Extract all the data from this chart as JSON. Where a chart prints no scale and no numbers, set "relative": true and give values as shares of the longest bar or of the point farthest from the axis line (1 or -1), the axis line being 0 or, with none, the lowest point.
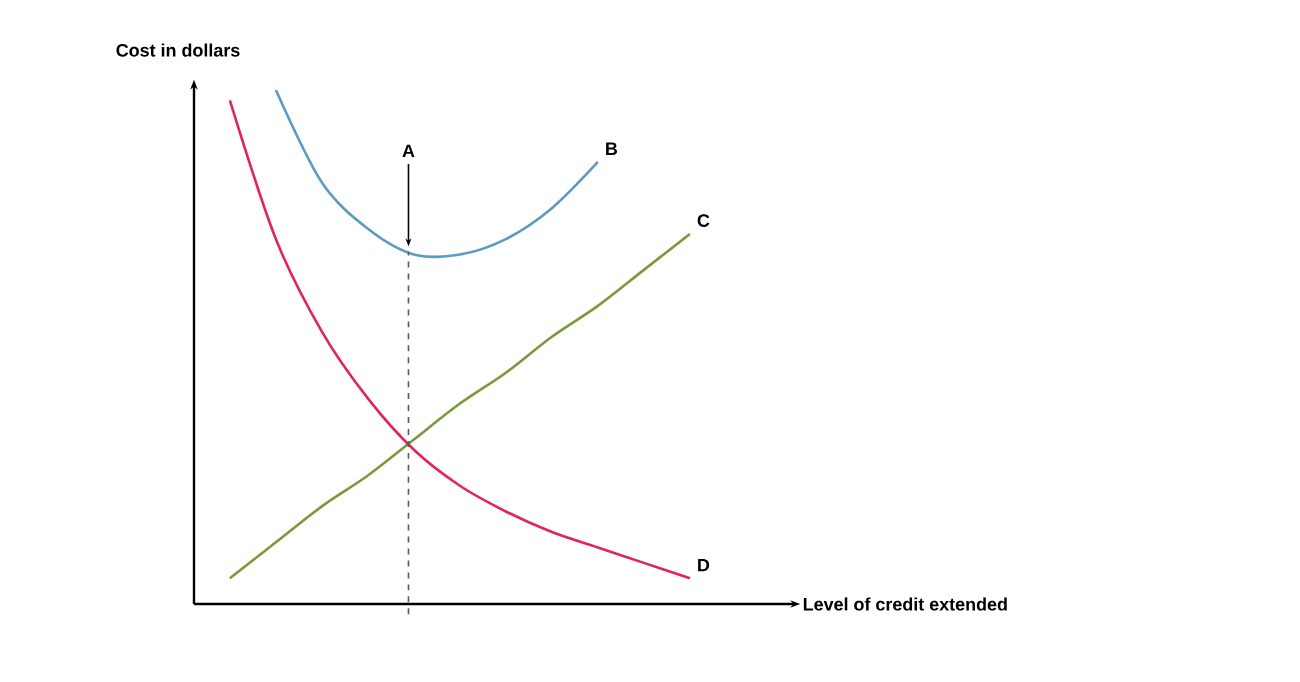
{
  "chart_data": {
    "type": "line",
    "relative": true,
    "ylabel": "Cost in dollars",
    "categories": [
      null,
      null,
      null,
      null,
      null,
      null,
      null,
      null,
      null,
      null,
      null
    ],
    "series": [
      {
        "name": "B",
        "color": "#5b9bc0",
        "values": [
          null,
          1,
          0.82,
          0.73,
          0.68,
          0.68,
          0.71,
          0.77,
          0.86,
          null,
          null
        ]
      },
      {
        "name": "C",
        "color": "#7a9a3a",
        "values": [
          0.05,
          0.12,
          0.19,
          0.25,
          0.32,
          0.39,
          0.45,
          0.52,
          0.58,
          0.65,
          0.72
        ]
      },
      {
        "name": "D",
        "color": "#e0245e",
        "values": [
          0.98,
          0.71,
          0.53,
          0.4,
          0.3,
          0.23,
          0.18,
          0.14,
          0.11,
          0.08,
          0.05
        ]
      }
    ],
    "annotations": [
      "A",
      "Level of credit extended"
    ]
  }
}
